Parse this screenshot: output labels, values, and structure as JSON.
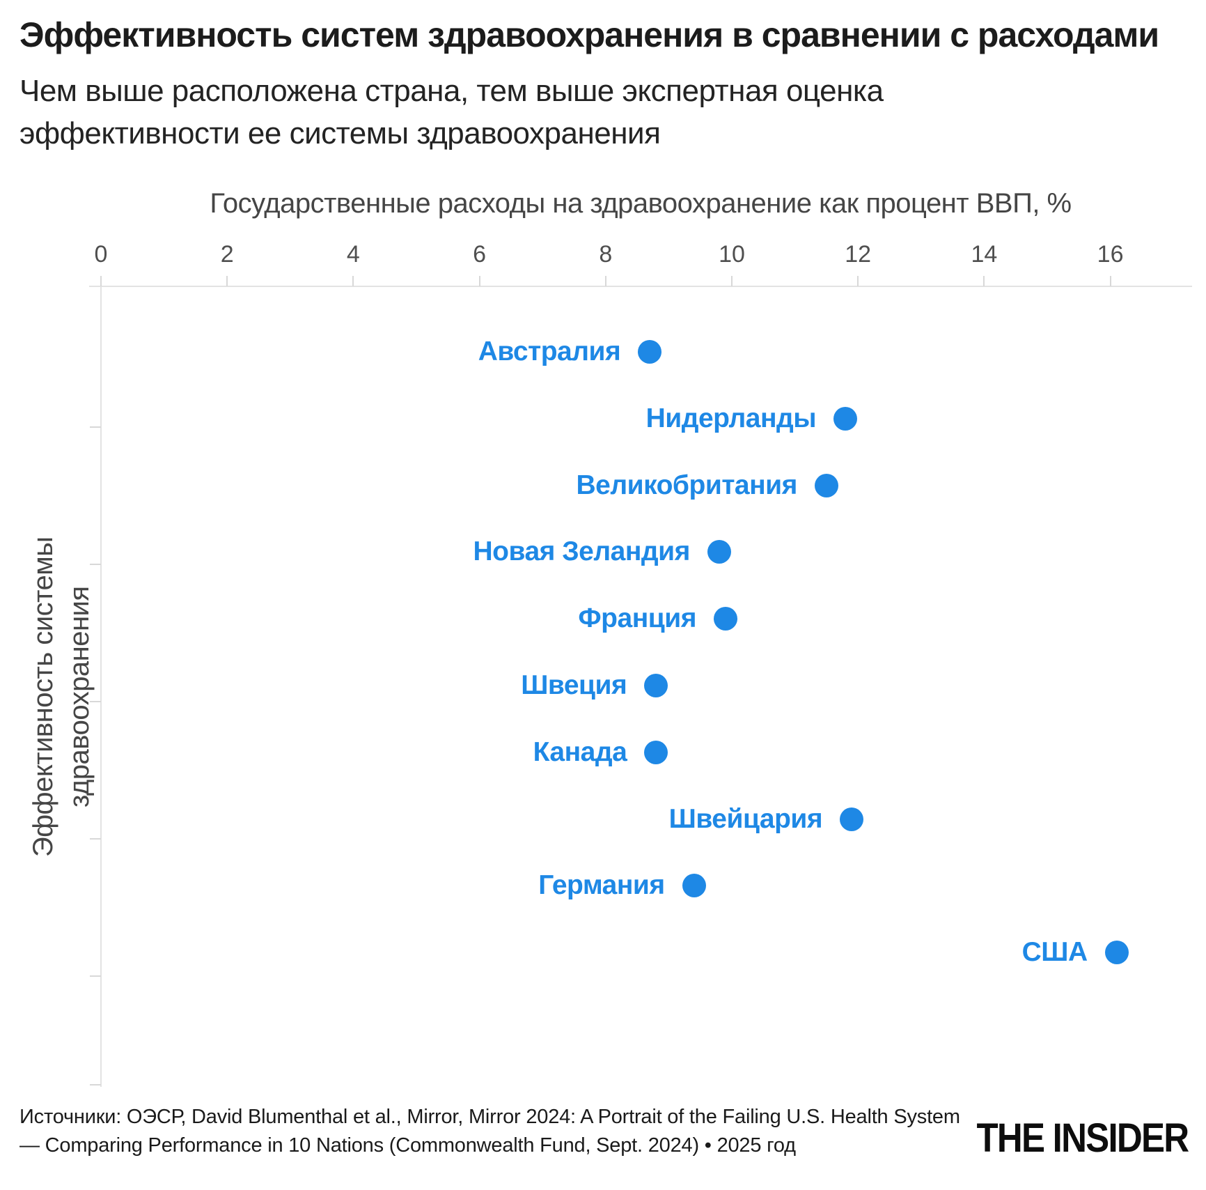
{
  "title": "Эффективность систем здравоохранения в сравнении с расходами",
  "subtitle": "Чем выше расположена страна, тем выше экспертная оценка эффективности ее системы здравоохранения",
  "chart_data": {
    "type": "scatter",
    "title": "Эффективность систем здравоохранения в сравнении с расходами",
    "xlabel": "Государственные расходы на здравоохранение как процент ВВП, %",
    "ylabel": "Эффективность системы здравоохранения",
    "x_ticks": [
      0,
      2,
      4,
      6,
      8,
      10,
      12,
      14,
      16
    ],
    "xlim": [
      0,
      17.3
    ],
    "y_axis_note": "страны ранжированы сверху вниз по оценке эффективности (1 = лучшая)",
    "grid": false,
    "legend": "none",
    "dot_color": "#1e88e5",
    "label_color": "#1e88e5",
    "points": [
      {
        "rank": 1,
        "country": "Австралия",
        "spending_pct_gdp": 8.7
      },
      {
        "rank": 2,
        "country": "Нидерланды",
        "spending_pct_gdp": 11.8
      },
      {
        "rank": 3,
        "country": "Великобритания",
        "spending_pct_gdp": 11.5
      },
      {
        "rank": 4,
        "country": "Новая Зеландия",
        "spending_pct_gdp": 9.8
      },
      {
        "rank": 5,
        "country": "Франция",
        "spending_pct_gdp": 9.9
      },
      {
        "rank": 6,
        "country": "Швеция",
        "spending_pct_gdp": 8.8
      },
      {
        "rank": 7,
        "country": "Канада",
        "spending_pct_gdp": 8.8
      },
      {
        "rank": 8,
        "country": "Швейцария",
        "spending_pct_gdp": 11.9
      },
      {
        "rank": 9,
        "country": "Германия",
        "spending_pct_gdp": 9.4
      },
      {
        "rank": 10,
        "country": "США",
        "spending_pct_gdp": 16.1
      }
    ]
  },
  "footer": {
    "sources": "Источники: ОЭСР, David Blumenthal et al., Mirror, Mirror 2024: A Portrait of the Failing U.S. Health System — Comparing Performance in 10 Nations (Commonwealth Fund, Sept. 2024) • 2025 год",
    "logo": "THE INSIDER"
  }
}
